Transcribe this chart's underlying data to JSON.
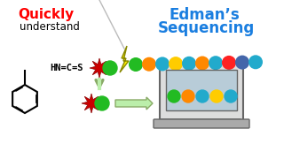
{
  "title_left_bold": "Quickly",
  "title_left_normal": "understand",
  "title_right_line1": "Edman’s",
  "title_right_line2": "Sequencing",
  "title_left_color": "#ff0000",
  "title_right_color": "#1a7ee0",
  "bg_color": "#ffffff",
  "chain_colors": [
    "#22bb22",
    "#ff8800",
    "#22aacc",
    "#ffcc00",
    "#22aacc",
    "#ff8800",
    "#22aacc",
    "#ff2222",
    "#4466aa",
    "#22aacc"
  ],
  "screen_balls": [
    "#22bb22",
    "#ff8800",
    "#22aacc",
    "#ffcc00",
    "#22aacc"
  ],
  "star_color": "#cc0000",
  "ball_color": "#22bb22",
  "lightning_fill": "#ffee00",
  "lightning_edge": "#888800",
  "arrow_fill": "#bbeeaa",
  "arrow_edge": "#88aa66",
  "divider_color": "#bbbbbb",
  "monitor_body": "#dddddd",
  "monitor_edge": "#666666",
  "screen_bg": "#b8ccd8",
  "base_color": "#aaaaaa"
}
